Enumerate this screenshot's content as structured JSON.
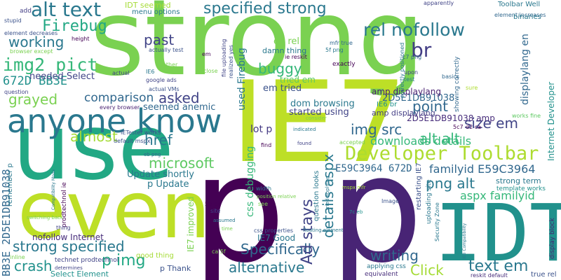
{
  "words": [
    {
      "text": "strong",
      "color": "#7ad151"
    },
    {
      "text": "p",
      "color": "#440154"
    },
    {
      "text": "p",
      "color": "#482475"
    },
    {
      "text": "IE7",
      "color": "#bddf26"
    },
    {
      "text": "use",
      "color": "#22a884"
    },
    {
      "text": "even",
      "color": "#bddf26"
    },
    {
      "text": "IDT",
      "color": "#21918c"
    },
    {
      "text": "anyone know",
      "color": "#2a788e"
    },
    {
      "text": "Developer Toolbar",
      "color": "#addc30"
    },
    {
      "text": "alt text",
      "color": "#2a788e"
    },
    {
      "text": "specified strong",
      "color": "#2a788e"
    },
    {
      "text": "rel nofollow",
      "color": "#2a788e"
    },
    {
      "text": "img2 pict",
      "color": "#35b779"
    },
    {
      "text": "Firebug",
      "color": "#22a884"
    },
    {
      "text": "working",
      "color": "#2a788e"
    },
    {
      "text": "672D BB3E",
      "color": "#21918c"
    },
    {
      "text": "past",
      "color": "#414487"
    },
    {
      "text": "br",
      "color": "#433e85"
    },
    {
      "text": "buggy",
      "color": "#35b779"
    },
    {
      "text": "comparison",
      "color": "#31688e"
    },
    {
      "text": "grayed",
      "color": "#7ad151"
    },
    {
      "text": "asked",
      "color": "#414487"
    },
    {
      "text": "point",
      "color": "#31688e"
    },
    {
      "text": "almost",
      "color": "#a5db36"
    },
    {
      "text": "href",
      "color": "#2a788e"
    },
    {
      "text": "img src",
      "color": "#31688e"
    },
    {
      "text": "size em",
      "color": "#414487"
    },
    {
      "text": "downloads details",
      "color": "#35b779"
    },
    {
      "text": "microsoft",
      "color": "#5ec962"
    },
    {
      "text": "E59C3964 672D",
      "color": "#31688e"
    },
    {
      "text": "familyid E59C3964",
      "color": "#31688e"
    },
    {
      "text": "png alt",
      "color": "#2a788e"
    },
    {
      "text": "aspx familyid",
      "color": "#35b779"
    },
    {
      "text": "alt alt",
      "color": "#35b779"
    },
    {
      "text": "strong specified",
      "color": "#2a788e"
    },
    {
      "text": "p img",
      "color": "#22a884"
    },
    {
      "text": "crash",
      "color": "#21918c"
    },
    {
      "text": "alternative",
      "color": "#2a788e"
    },
    {
      "text": "Specifically",
      "color": "#31688e"
    },
    {
      "text": "writing",
      "color": "#31688e"
    },
    {
      "text": "text em",
      "color": "#2a788e"
    },
    {
      "text": "Click",
      "color": "#a5db36"
    },
    {
      "text": "Ad stays",
      "color": "#414487"
    },
    {
      "text": "details aspx",
      "color": "#2a788e"
    },
    {
      "text": "2D5E1DB91038",
      "color": "#31688e"
    },
    {
      "text": "2D5E1DB91038 amp",
      "color": "#472d7b"
    },
    {
      "text": "BB3E 2D5E1DB91038",
      "color": "#31688e"
    },
    {
      "text": "nofollow Internet",
      "color": "#472d7b"
    },
    {
      "text": "Update shortly",
      "color": "#2a788e"
    },
    {
      "text": "p Update",
      "color": "#2a788e"
    },
    {
      "text": "lot p",
      "color": "#443983"
    },
    {
      "text": "dom browsing",
      "color": "#2a788e"
    },
    {
      "text": "started using",
      "color": "#414487"
    },
    {
      "text": "em tried",
      "color": "#3b528b"
    },
    {
      "text": "amp displaylang",
      "color": "#481f70"
    },
    {
      "text": "displaylang en",
      "color": "#31688e"
    },
    {
      "text": "en rel",
      "color": "#7ad151"
    },
    {
      "text": "damn thing",
      "color": "#2a788e"
    },
    {
      "text": "needed Select",
      "color": "#414487"
    },
    {
      "text": "used Firebug",
      "color": "#2a788e"
    },
    {
      "text": "css debugging",
      "color": "#35b779"
    },
    {
      "text": "seemed anemic",
      "color": "#31688e"
    },
    {
      "text": "IDT seemed",
      "color": "#a5db36"
    },
    {
      "text": "menu options",
      "color": "#2a788e"
    },
    {
      "text": "strong term",
      "color": "#2a788e"
    },
    {
      "text": "Toolbar Well",
      "color": "#2a788e"
    },
    {
      "text": "Internet Developer",
      "color": "#21918c"
    },
    {
      "text": "IE7 improved",
      "color": "#7ad151"
    },
    {
      "text": "IE7 Good",
      "color": "#2a788e"
    },
    {
      "text": "p Thank",
      "color": "#3b528b"
    },
    {
      "text": "good thing",
      "color": "#a5db36"
    },
    {
      "text": "Select Element",
      "color": "#21918c"
    },
    {
      "text": "restarting IE7",
      "color": "#3b528b"
    },
    {
      "text": "tried em",
      "color": "#5ec962"
    },
    {
      "text": "amp displaylang",
      "color": "#433e85"
    },
    {
      "text": "IE6 br",
      "color": "#21918c"
    },
    {
      "text": "question looks",
      "color": "#2a788e"
    },
    {
      "text": "exactly",
      "color": "#440154"
    },
    {
      "text": "remember p",
      "color": "#2a788e"
    },
    {
      "text": "prodtechnol ie",
      "color": "#440154"
    },
    {
      "text": "technet prodtechnol",
      "color": "#414487"
    },
    {
      "text": "uploading site",
      "color": "#2a788e"
    },
    {
      "text": "showing correctly",
      "color": "#31688e"
    },
    {
      "text": "display block",
      "color": "#481f70"
    },
    {
      "text": "template works",
      "color": "#21918c"
    },
    {
      "text": "true rel",
      "color": "#3b528b"
    },
    {
      "text": "reskit default",
      "color": "#472d7b"
    },
    {
      "text": "applying css",
      "color": "#2a788e"
    },
    {
      "text": "equivalent",
      "color": "#472d7b"
    },
    {
      "text": "default mspx",
      "color": "#3b528b"
    },
    {
      "text": "IETester works",
      "color": "#3b528b"
    },
    {
      "text": "every browser",
      "color": "#481f70"
    },
    {
      "text": "element decreases",
      "color": "#3b528b"
    },
    {
      "text": "element increases",
      "color": "#31688e"
    },
    {
      "text": "binaries",
      "color": "#2a788e"
    },
    {
      "text": "apparently",
      "color": "#414487"
    },
    {
      "text": "stupid",
      "color": "#3b528b"
    },
    {
      "text": "add",
      "color": "#433e85"
    },
    {
      "text": "height",
      "color": "#440154"
    },
    {
      "text": "browser except",
      "color": "#7ad151"
    },
    {
      "text": "actually test",
      "color": "#3b528b"
    },
    {
      "text": "question",
      "color": "#414487"
    },
    {
      "text": "actual",
      "color": "#414487"
    },
    {
      "text": "IE6",
      "color": "#2a788e"
    },
    {
      "text": "google ads",
      "color": "#414487"
    },
    {
      "text": "actual VMs",
      "color": "#3b528b"
    },
    {
      "text": "another",
      "color": "#7ad151"
    },
    {
      "text": "em",
      "color": "#440154"
    },
    {
      "text": "file uploading",
      "color": "#414487"
    },
    {
      "text": "realized yes",
      "color": "#3b528b"
    },
    {
      "text": "ie reskit",
      "color": "#440154"
    },
    {
      "text": "close",
      "color": "#7ad151"
    },
    {
      "text": "mfr true",
      "color": "#31688e"
    },
    {
      "text": "5f png",
      "color": "#2a788e"
    },
    {
      "text": "c7 png",
      "color": "#31688e"
    },
    {
      "text": "basics",
      "color": "#31688e"
    },
    {
      "text": "correctly positioned",
      "color": "#2a788e"
    },
    {
      "text": "upon",
      "color": "#414487"
    },
    {
      "text": "test",
      "color": "#2a788e"
    },
    {
      "text": "sure",
      "color": "#addc30"
    },
    {
      "text": "d2 ca",
      "color": "#440154"
    },
    {
      "text": "5c7",
      "color": "#440154"
    },
    {
      "text": "works fine",
      "color": "#5ec962"
    },
    {
      "text": "indicated",
      "color": "#2a788e"
    },
    {
      "text": "consider",
      "color": "#7ad151"
    },
    {
      "text": "find",
      "color": "#440154"
    },
    {
      "text": "found",
      "color": "#414487"
    },
    {
      "text": "accepted",
      "color": "#7ad151"
    },
    {
      "text": "mspx mfr",
      "color": "#a5db36"
    },
    {
      "text": "eb png",
      "color": "#31688e"
    },
    {
      "text": "Compatibility Mode",
      "color": "#2a788e"
    },
    {
      "text": "switching back",
      "color": "#7ad151"
    },
    {
      "text": "thing",
      "color": "#414487"
    },
    {
      "text": "inline",
      "color": "#7ad151"
    },
    {
      "text": "determines",
      "color": "#414487"
    },
    {
      "text": "width",
      "color": "#2a788e"
    },
    {
      "text": "position relative",
      "color": "#7ad151"
    },
    {
      "text": "5b c7",
      "color": "#440154"
    },
    {
      "text": "see",
      "color": "#7ad151"
    },
    {
      "text": "site",
      "color": "#414487"
    },
    {
      "text": "assumed",
      "color": "#2a788e"
    },
    {
      "text": "time",
      "color": "#7ad151"
    },
    {
      "text": "ca 5f",
      "color": "#7ad151"
    },
    {
      "text": "css properties",
      "color": "#3b528b"
    },
    {
      "text": "floating element",
      "color": "#2a788e"
    },
    {
      "text": "tried applying",
      "color": "#2a788e"
    },
    {
      "text": "7c eb",
      "color": "#21918c"
    },
    {
      "text": "Image",
      "color": "#3b528b"
    },
    {
      "text": "Security Zone",
      "color": "#2a788e"
    },
    {
      "text": "IE8 Compatibility",
      "color": "#2a788e"
    }
  ]
}
